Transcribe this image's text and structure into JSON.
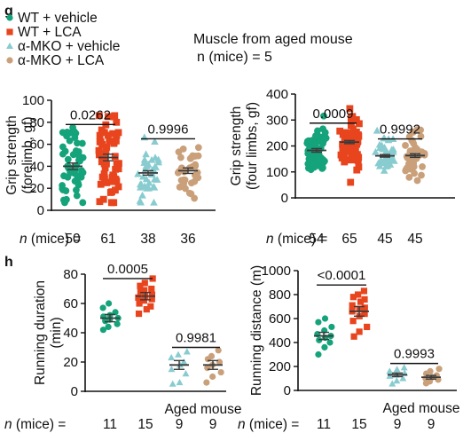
{
  "colors": {
    "wt_vehicle": "#14a37a",
    "wt_lca": "#e8451e",
    "mko_vehicle": "#88ccd0",
    "mko_lca": "#c9a07a",
    "axis": "#111111"
  },
  "panel_g": {
    "letter": "g",
    "note_line1": "Muscle from aged mouse",
    "note_line2": "n (mice) = 5",
    "legend": [
      {
        "label": "WT + vehicle",
        "marker": "circle",
        "color_key": "wt_vehicle"
      },
      {
        "label": "WT + LCA",
        "marker": "square",
        "color_key": "wt_lca"
      },
      {
        "label": "α-MKO + vehicle",
        "marker": "triangle",
        "color_key": "mko_vehicle"
      },
      {
        "label": "α-MKO + LCA",
        "marker": "circle",
        "color_key": "mko_lca"
      }
    ]
  },
  "panel_h": {
    "letter": "h"
  },
  "chart_data": [
    {
      "type": "scatter",
      "panel": "g",
      "ylabel_line1": "Grip strength",
      "ylabel_line2": "(forelimb, gf)",
      "ylim": [
        0,
        100
      ],
      "yticks": [
        "0",
        "20",
        "40",
        "60",
        "80",
        "100"
      ],
      "groups": [
        {
          "color_key": "wt_vehicle",
          "marker": "circle",
          "n": 50,
          "mean": 40,
          "sem": 3
        },
        {
          "color_key": "wt_lca",
          "marker": "square",
          "n": 61,
          "mean": 48,
          "sem": 3
        },
        {
          "color_key": "mko_vehicle",
          "marker": "triangle",
          "n": 38,
          "mean": 34,
          "sem": 2
        },
        {
          "color_key": "mko_lca",
          "marker": "circle",
          "n": 36,
          "mean": 36,
          "sem": 2.5
        }
      ],
      "comparisons": [
        {
          "from": 0,
          "to": 1,
          "p": "0.0262",
          "y": 78
        },
        {
          "from": 2,
          "to": 3,
          "p": "0.9996",
          "y": 65
        }
      ],
      "n_label_prefix": "n",
      "n_label_text": " (mice) =",
      "n_values": [
        "50",
        "61",
        "38",
        "36"
      ]
    },
    {
      "type": "scatter",
      "panel": "g",
      "ylabel_line1": "Grip strength",
      "ylabel_line2": "(four limbs, gf)",
      "ylim": [
        0,
        400
      ],
      "yticks": [
        "0",
        "100",
        "200",
        "300",
        "400"
      ],
      "groups": [
        {
          "color_key": "wt_vehicle",
          "marker": "circle",
          "n": 54,
          "mean": 183,
          "sem": 7
        },
        {
          "color_key": "wt_lca",
          "marker": "square",
          "n": 65,
          "mean": 215,
          "sem": 6
        },
        {
          "color_key": "mko_vehicle",
          "marker": "triangle",
          "n": 45,
          "mean": 162,
          "sem": 5
        },
        {
          "color_key": "mko_lca",
          "marker": "circle",
          "n": 45,
          "mean": 163,
          "sem": 7
        }
      ],
      "comparisons": [
        {
          "from": 0,
          "to": 1,
          "p": "0.0009",
          "y": 288
        },
        {
          "from": 2,
          "to": 3,
          "p": "0.9992",
          "y": 227
        }
      ],
      "n_label_prefix": "n",
      "n_label_text": " (mice) =",
      "n_values": [
        "54",
        "65",
        "45",
        "45"
      ]
    },
    {
      "type": "scatter",
      "panel": "h",
      "ylabel_line1": "Running duration",
      "ylabel_line2": "(min)",
      "ylim": [
        0,
        80
      ],
      "yticks": [
        "0",
        "20",
        "40",
        "60",
        "80"
      ],
      "groups": [
        {
          "color_key": "wt_vehicle",
          "marker": "circle",
          "n": 11,
          "mean": 50,
          "sem": 2.5,
          "values": [
            42,
            44,
            46,
            48,
            49,
            50,
            51,
            52,
            54,
            57,
            60
          ]
        },
        {
          "color_key": "wt_lca",
          "marker": "square",
          "n": 15,
          "mean": 65,
          "sem": 2.5,
          "values": [
            53,
            56,
            58,
            60,
            62,
            63,
            64,
            65,
            66,
            68,
            69,
            70,
            72,
            74,
            77
          ]
        },
        {
          "color_key": "mko_vehicle",
          "marker": "triangle",
          "n": 9,
          "mean": 18,
          "sem": 3,
          "values": [
            5,
            6,
            12,
            15,
            18,
            20,
            23,
            25,
            27
          ]
        },
        {
          "color_key": "mko_lca",
          "marker": "circle",
          "n": 9,
          "mean": 18,
          "sem": 3,
          "values": [
            6,
            10,
            13,
            16,
            18,
            20,
            22,
            24,
            28
          ]
        }
      ],
      "comparisons": [
        {
          "from": 0,
          "to": 1,
          "p": "0.0005",
          "y": 77
        },
        {
          "from": 2,
          "to": 3,
          "p": "0.9981",
          "y": 30
        }
      ],
      "group_label": "Aged mouse",
      "n_label_prefix": "n",
      "n_label_text": " (mice) =",
      "n_values": [
        "11",
        "15",
        "9",
        "9"
      ]
    },
    {
      "type": "scatter",
      "panel": "h",
      "ylabel_line1": "Running distance (m)",
      "ylabel_line2": "",
      "ylim": [
        0,
        1000
      ],
      "yticks": [
        "0",
        "200",
        "400",
        "600",
        "800",
        "1000"
      ],
      "groups": [
        {
          "color_key": "wt_vehicle",
          "marker": "circle",
          "n": 11,
          "mean": 455,
          "sem": 30,
          "values": [
            300,
            360,
            400,
            420,
            440,
            455,
            470,
            500,
            530,
            570,
            600
          ]
        },
        {
          "color_key": "wt_lca",
          "marker": "square",
          "n": 15,
          "mean": 660,
          "sem": 40,
          "values": [
            450,
            490,
            530,
            580,
            620,
            640,
            660,
            680,
            690,
            710,
            740,
            760,
            780,
            800,
            830
          ]
        },
        {
          "color_key": "mko_vehicle",
          "marker": "triangle",
          "n": 9,
          "mean": 130,
          "sem": 15,
          "values": [
            55,
            80,
            100,
            120,
            130,
            145,
            160,
            175,
            190
          ]
        },
        {
          "color_key": "mko_lca",
          "marker": "circle",
          "n": 9,
          "mean": 110,
          "sem": 15,
          "values": [
            60,
            75,
            90,
            100,
            110,
            125,
            140,
            160,
            180
          ]
        }
      ],
      "comparisons": [
        {
          "from": 0,
          "to": 1,
          "p": "<0.0001",
          "y": 880
        },
        {
          "from": 2,
          "to": 3,
          "p": "0.9993",
          "y": 225
        }
      ],
      "group_label": "Aged mouse",
      "n_label_prefix": "n",
      "n_label_text": " (mice) =",
      "n_values": [
        "11",
        "15",
        "9",
        "9"
      ]
    }
  ]
}
